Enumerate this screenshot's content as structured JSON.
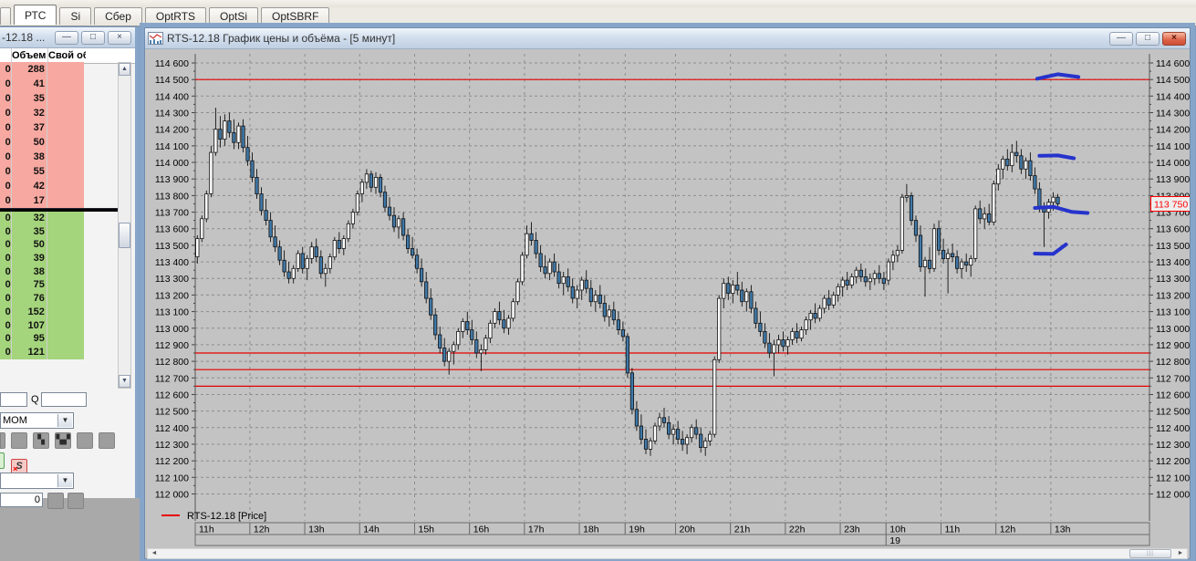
{
  "tab_bar": {
    "tabs": [
      {
        "label": "РТС",
        "active": true
      },
      {
        "label": "Si",
        "active": false
      },
      {
        "label": "Сбер",
        "active": false
      },
      {
        "label": "OptRTS",
        "active": false
      },
      {
        "label": "OptSi",
        "active": false
      },
      {
        "label": "OptSBRF",
        "active": false
      }
    ]
  },
  "left_panel": {
    "title": "-12.18 ...",
    "columns": {
      "volume": "Объем",
      "own": "Свой об"
    },
    "price_digit": "0",
    "asks": [
      288,
      41,
      35,
      32,
      37,
      50,
      38,
      55,
      42,
      17
    ],
    "bids": [
      32,
      35,
      50,
      39,
      38,
      75,
      76,
      152,
      107,
      95,
      121
    ],
    "controls": {
      "q_label": "Q",
      "indicator_value": "MOM",
      "stop_button_label": "S",
      "stop_button_x": "×",
      "amount_value": "0",
      "toolbar_glyph_1": "▚",
      "toolbar_glyph_2": "▚▞"
    },
    "scroll_icons": {
      "up": "▲",
      "down": "▼"
    }
  },
  "chart_window": {
    "title": "RTS-12.18 График цены и объёма - [5 минут]",
    "legend_label": "RTS-12.18 [Price]",
    "buttons": {
      "minimize": "—",
      "restore": "□",
      "close": "×"
    },
    "scroll_icons": {
      "left": "◄",
      "right": "►"
    }
  },
  "chart_data": {
    "type": "candlestick",
    "instrument": "RTS-12.18",
    "timeframe_minutes": 5,
    "title": "RTS-12.18 График цены и объёма - [5 минут]",
    "y_axis": {
      "min": 112000,
      "max": 114600,
      "step": 100
    },
    "x_axis": {
      "hours": [
        {
          "label": "11h",
          "candles": 12
        },
        {
          "label": "12h",
          "candles": 12
        },
        {
          "label": "13h",
          "candles": 12
        },
        {
          "label": "14h",
          "candles": 12
        },
        {
          "label": "15h",
          "candles": 12
        },
        {
          "label": "16h",
          "candles": 12
        },
        {
          "label": "17h",
          "candles": 12
        },
        {
          "label": "18h",
          "candles": 10
        },
        {
          "label": "19h",
          "candles": 11
        },
        {
          "label": "20h",
          "candles": 12
        },
        {
          "label": "21h",
          "candles": 12
        },
        {
          "label": "22h",
          "candles": 12
        },
        {
          "label": "23h",
          "candles": 10
        },
        {
          "label": "10h",
          "candles": 12
        },
        {
          "label": "11h",
          "candles": 12
        },
        {
          "label": "12h",
          "candles": 12
        },
        {
          "label": "13h",
          "candles": 2
        }
      ],
      "date_row": {
        "label": "19",
        "start_hour_index": 13
      }
    },
    "current_price": {
      "value": 113750,
      "label": "113 750"
    },
    "red_levels": [
      114500,
      112850,
      112750,
      112650
    ],
    "blue_annotations": [
      {
        "points": [
          [
            183.5,
            114505
          ],
          [
            188,
            114532
          ],
          [
            192.5,
            114515
          ]
        ]
      },
      {
        "points": [
          [
            184,
            114040
          ],
          [
            188,
            114042
          ],
          [
            191.5,
            114025
          ]
        ]
      },
      {
        "points": [
          [
            183,
            113725
          ],
          [
            187,
            113732
          ],
          [
            191,
            113702
          ],
          [
            194.5,
            113695
          ]
        ]
      },
      {
        "points": [
          [
            183,
            113450
          ],
          [
            187,
            113448
          ],
          [
            189.8,
            113505
          ]
        ]
      }
    ],
    "colors": {
      "up": "#ffffff",
      "down": "#3f78a8",
      "wick": "#111111",
      "red_line": "#e60000",
      "annotation": "#2633cc",
      "grid": "#8d8d8d",
      "plot_bg": "#c3c3c3",
      "price_label": "#ff0000",
      "ask_bg": "#f7a8a0",
      "bid_bg": "#a4d47c"
    },
    "candles": [
      [
        113430,
        113560,
        113390,
        113540
      ],
      [
        113540,
        113680,
        113520,
        113660
      ],
      [
        113660,
        113830,
        113640,
        113810
      ],
      [
        113810,
        114100,
        113790,
        114060
      ],
      [
        114060,
        114330,
        114040,
        114200
      ],
      [
        114200,
        114280,
        114090,
        114140
      ],
      [
        114140,
        114290,
        114100,
        114250
      ],
      [
        114250,
        114300,
        114150,
        114180
      ],
      [
        114180,
        114260,
        114080,
        114120
      ],
      [
        114120,
        114240,
        114080,
        114220
      ],
      [
        114220,
        114260,
        114060,
        114090
      ],
      [
        114090,
        114160,
        113980,
        114010
      ],
      [
        114010,
        114060,
        113880,
        113910
      ],
      [
        113910,
        113960,
        113780,
        113810
      ],
      [
        113810,
        113850,
        113680,
        113710
      ],
      [
        113710,
        113780,
        113620,
        113650
      ],
      [
        113650,
        113700,
        113520,
        113550
      ],
      [
        113550,
        113620,
        113460,
        113490
      ],
      [
        113490,
        113530,
        113380,
        113410
      ],
      [
        113410,
        113470,
        113310,
        113340
      ],
      [
        113340,
        113400,
        113270,
        113300
      ],
      [
        113300,
        113380,
        113270,
        113360
      ],
      [
        113360,
        113470,
        113340,
        113450
      ],
      [
        113450,
        113490,
        113330,
        113360
      ],
      [
        113360,
        113440,
        113290,
        113420
      ],
      [
        113420,
        113520,
        113390,
        113490
      ],
      [
        113490,
        113540,
        113400,
        113430
      ],
      [
        113430,
        113470,
        113300,
        113330
      ],
      [
        113330,
        113390,
        113250,
        113360
      ],
      [
        113360,
        113450,
        113330,
        113430
      ],
      [
        113430,
        113550,
        113410,
        113530
      ],
      [
        113530,
        113580,
        113450,
        113480
      ],
      [
        113480,
        113560,
        113440,
        113540
      ],
      [
        113540,
        113650,
        113520,
        113630
      ],
      [
        113630,
        113720,
        113600,
        113700
      ],
      [
        113700,
        113830,
        113680,
        113810
      ],
      [
        113810,
        113900,
        113760,
        113880
      ],
      [
        113880,
        113960,
        113840,
        113930
      ],
      [
        113930,
        113950,
        113820,
        113850
      ],
      [
        113850,
        113940,
        113810,
        113910
      ],
      [
        113910,
        113930,
        113790,
        113820
      ],
      [
        113820,
        113860,
        113700,
        113730
      ],
      [
        113730,
        113790,
        113650,
        113680
      ],
      [
        113680,
        113730,
        113580,
        113610
      ],
      [
        113610,
        113680,
        113540,
        113660
      ],
      [
        113660,
        113700,
        113530,
        113560
      ],
      [
        113560,
        113600,
        113450,
        113480
      ],
      [
        113480,
        113550,
        113420,
        113440
      ],
      [
        113440,
        113480,
        113330,
        113360
      ],
      [
        113360,
        113420,
        113250,
        113280
      ],
      [
        113280,
        113340,
        113150,
        113180
      ],
      [
        113180,
        113240,
        113050,
        113080
      ],
      [
        113080,
        113120,
        112930,
        112960
      ],
      [
        112960,
        113010,
        112850,
        112880
      ],
      [
        112880,
        112940,
        112770,
        112800
      ],
      [
        112800,
        112880,
        112720,
        112860
      ],
      [
        112860,
        112920,
        112780,
        112900
      ],
      [
        112900,
        113000,
        112870,
        112980
      ],
      [
        112980,
        113060,
        112940,
        113040
      ],
      [
        113040,
        113100,
        112960,
        112990
      ],
      [
        112990,
        113050,
        112900,
        112930
      ],
      [
        112930,
        112980,
        112820,
        112850
      ],
      [
        112850,
        112900,
        112740,
        112870
      ],
      [
        112870,
        112960,
        112840,
        112940
      ],
      [
        112940,
        113050,
        112910,
        113030
      ],
      [
        113030,
        113120,
        113000,
        113100
      ],
      [
        113100,
        113160,
        113020,
        113050
      ],
      [
        113050,
        113110,
        112970,
        113000
      ],
      [
        113000,
        113080,
        112960,
        113060
      ],
      [
        113060,
        113180,
        113040,
        113160
      ],
      [
        113160,
        113300,
        113140,
        113280
      ],
      [
        113280,
        113460,
        113260,
        113440
      ],
      [
        113440,
        113620,
        113420,
        113570
      ],
      [
        113570,
        113640,
        113500,
        113530
      ],
      [
        113530,
        113580,
        113420,
        113450
      ],
      [
        113450,
        113500,
        113340,
        113370
      ],
      [
        113370,
        113440,
        113300,
        113330
      ],
      [
        113330,
        113420,
        113290,
        113400
      ],
      [
        113400,
        113450,
        113310,
        113340
      ],
      [
        113340,
        113390,
        113240,
        113270
      ],
      [
        113270,
        113340,
        113200,
        113310
      ],
      [
        113310,
        113360,
        113220,
        113250
      ],
      [
        113250,
        113300,
        113150,
        113180
      ],
      [
        113180,
        113260,
        113120,
        113230
      ],
      [
        113230,
        113310,
        113170,
        113290
      ],
      [
        113290,
        113350,
        113210,
        113240
      ],
      [
        113240,
        113290,
        113130,
        113160
      ],
      [
        113160,
        113230,
        113100,
        113200
      ],
      [
        113200,
        113260,
        113120,
        113150
      ],
      [
        113150,
        113200,
        113040,
        113070
      ],
      [
        113070,
        113140,
        113010,
        113110
      ],
      [
        113110,
        113160,
        113020,
        113050
      ],
      [
        113050,
        113100,
        112960,
        112990
      ],
      [
        112990,
        113040,
        112920,
        112950
      ],
      [
        112950,
        112970,
        112700,
        112730
      ],
      [
        112730,
        112760,
        112480,
        112510
      ],
      [
        112510,
        112560,
        112380,
        112410
      ],
      [
        112410,
        112480,
        112300,
        112330
      ],
      [
        112330,
        112390,
        112240,
        112270
      ],
      [
        112270,
        112340,
        112230,
        112320
      ],
      [
        112320,
        112430,
        112300,
        112410
      ],
      [
        112410,
        112490,
        112380,
        112460
      ],
      [
        112460,
        112520,
        112400,
        112430
      ],
      [
        112430,
        112470,
        112330,
        112360
      ],
      [
        112360,
        112420,
        112300,
        112390
      ],
      [
        112390,
        112440,
        112300,
        112330
      ],
      [
        112330,
        112380,
        112260,
        112300
      ],
      [
        112300,
        112360,
        112240,
        112340
      ],
      [
        112340,
        112420,
        112310,
        112400
      ],
      [
        112400,
        112450,
        112330,
        112360
      ],
      [
        112360,
        112400,
        112250,
        112280
      ],
      [
        112280,
        112340,
        112230,
        112320
      ],
      [
        112320,
        112380,
        112290,
        112360
      ],
      [
        112360,
        112830,
        112340,
        112810
      ],
      [
        112810,
        113200,
        112790,
        113180
      ],
      [
        113180,
        113300,
        113120,
        113270
      ],
      [
        113270,
        113310,
        113170,
        113210
      ],
      [
        113210,
        113290,
        113150,
        113260
      ],
      [
        113260,
        113340,
        113200,
        113230
      ],
      [
        113230,
        113280,
        113130,
        113160
      ],
      [
        113160,
        113240,
        113100,
        113220
      ],
      [
        113220,
        113260,
        113090,
        113120
      ],
      [
        113120,
        113160,
        113000,
        113030
      ],
      [
        113030,
        113100,
        112950,
        112980
      ],
      [
        112980,
        113030,
        112880,
        112910
      ],
      [
        112910,
        112970,
        112820,
        112850
      ],
      [
        112850,
        112930,
        112710,
        112900
      ],
      [
        112900,
        112960,
        112850,
        112930
      ],
      [
        112930,
        112980,
        112860,
        112890
      ],
      [
        112890,
        112950,
        112840,
        112930
      ],
      [
        112930,
        113000,
        112900,
        112980
      ],
      [
        112980,
        113030,
        112910,
        112940
      ],
      [
        112940,
        113010,
        112920,
        112990
      ],
      [
        112990,
        113070,
        112960,
        113050
      ],
      [
        113050,
        113110,
        112990,
        113090
      ],
      [
        113090,
        113150,
        113030,
        113060
      ],
      [
        113060,
        113140,
        113040,
        113120
      ],
      [
        113120,
        113200,
        113090,
        113180
      ],
      [
        113180,
        113230,
        113110,
        113140
      ],
      [
        113140,
        113220,
        113120,
        113200
      ],
      [
        113200,
        113270,
        113160,
        113250
      ],
      [
        113250,
        113310,
        113190,
        113290
      ],
      [
        113290,
        113340,
        113230,
        113260
      ],
      [
        113260,
        113330,
        113240,
        113310
      ],
      [
        113310,
        113370,
        113270,
        113350
      ],
      [
        113350,
        113390,
        113280,
        113310
      ],
      [
        113310,
        113360,
        113250,
        113280
      ],
      [
        113280,
        113330,
        113230,
        113300
      ],
      [
        113300,
        113350,
        113260,
        113330
      ],
      [
        113330,
        113380,
        113270,
        113300
      ],
      [
        113300,
        113340,
        113230,
        113270
      ],
      [
        113290,
        113420,
        113260,
        113400
      ],
      [
        113400,
        113470,
        113350,
        113440
      ],
      [
        113440,
        113500,
        113400,
        113470
      ],
      [
        113470,
        113810,
        113450,
        113790
      ],
      [
        113790,
        113870,
        113760,
        113800
      ],
      [
        113800,
        113820,
        113620,
        113650
      ],
      [
        113650,
        113680,
        113520,
        113560
      ],
      [
        113560,
        113620,
        113340,
        113370
      ],
      [
        113370,
        113430,
        113190,
        113410
      ],
      [
        113410,
        113490,
        113330,
        113360
      ],
      [
        113360,
        113630,
        113340,
        113600
      ],
      [
        113600,
        113650,
        113440,
        113470
      ],
      [
        113470,
        113540,
        113390,
        113420
      ],
      [
        113420,
        113480,
        113210,
        113450
      ],
      [
        113450,
        113510,
        113400,
        113430
      ],
      [
        113430,
        113470,
        113330,
        113360
      ],
      [
        113360,
        113420,
        113300,
        113400
      ],
      [
        113400,
        113450,
        113340,
        113380
      ],
      [
        113380,
        113440,
        113310,
        113420
      ],
      [
        113420,
        113740,
        113400,
        113720
      ],
      [
        113720,
        113770,
        113630,
        113660
      ],
      [
        113660,
        113730,
        113600,
        113690
      ],
      [
        113690,
        113750,
        113620,
        113640
      ],
      [
        113640,
        113890,
        113620,
        113870
      ],
      [
        113870,
        113990,
        113830,
        113960
      ],
      [
        113960,
        114040,
        113900,
        114020
      ],
      [
        114020,
        114080,
        113950,
        113980
      ],
      [
        113980,
        114110,
        113940,
        114060
      ],
      [
        114060,
        114130,
        114000,
        114040
      ],
      [
        114040,
        114080,
        113930,
        113960
      ],
      [
        113960,
        114030,
        113900,
        114010
      ],
      [
        114010,
        114060,
        113890,
        113920
      ],
      [
        113920,
        113970,
        113810,
        113840
      ],
      [
        113840,
        113880,
        113700,
        113730
      ],
      [
        113730,
        113760,
        113490,
        113700
      ],
      [
        113700,
        113780,
        113660,
        113760
      ],
      [
        113760,
        113820,
        113710,
        113790
      ],
      [
        113790,
        113810,
        113720,
        113750
      ]
    ]
  }
}
